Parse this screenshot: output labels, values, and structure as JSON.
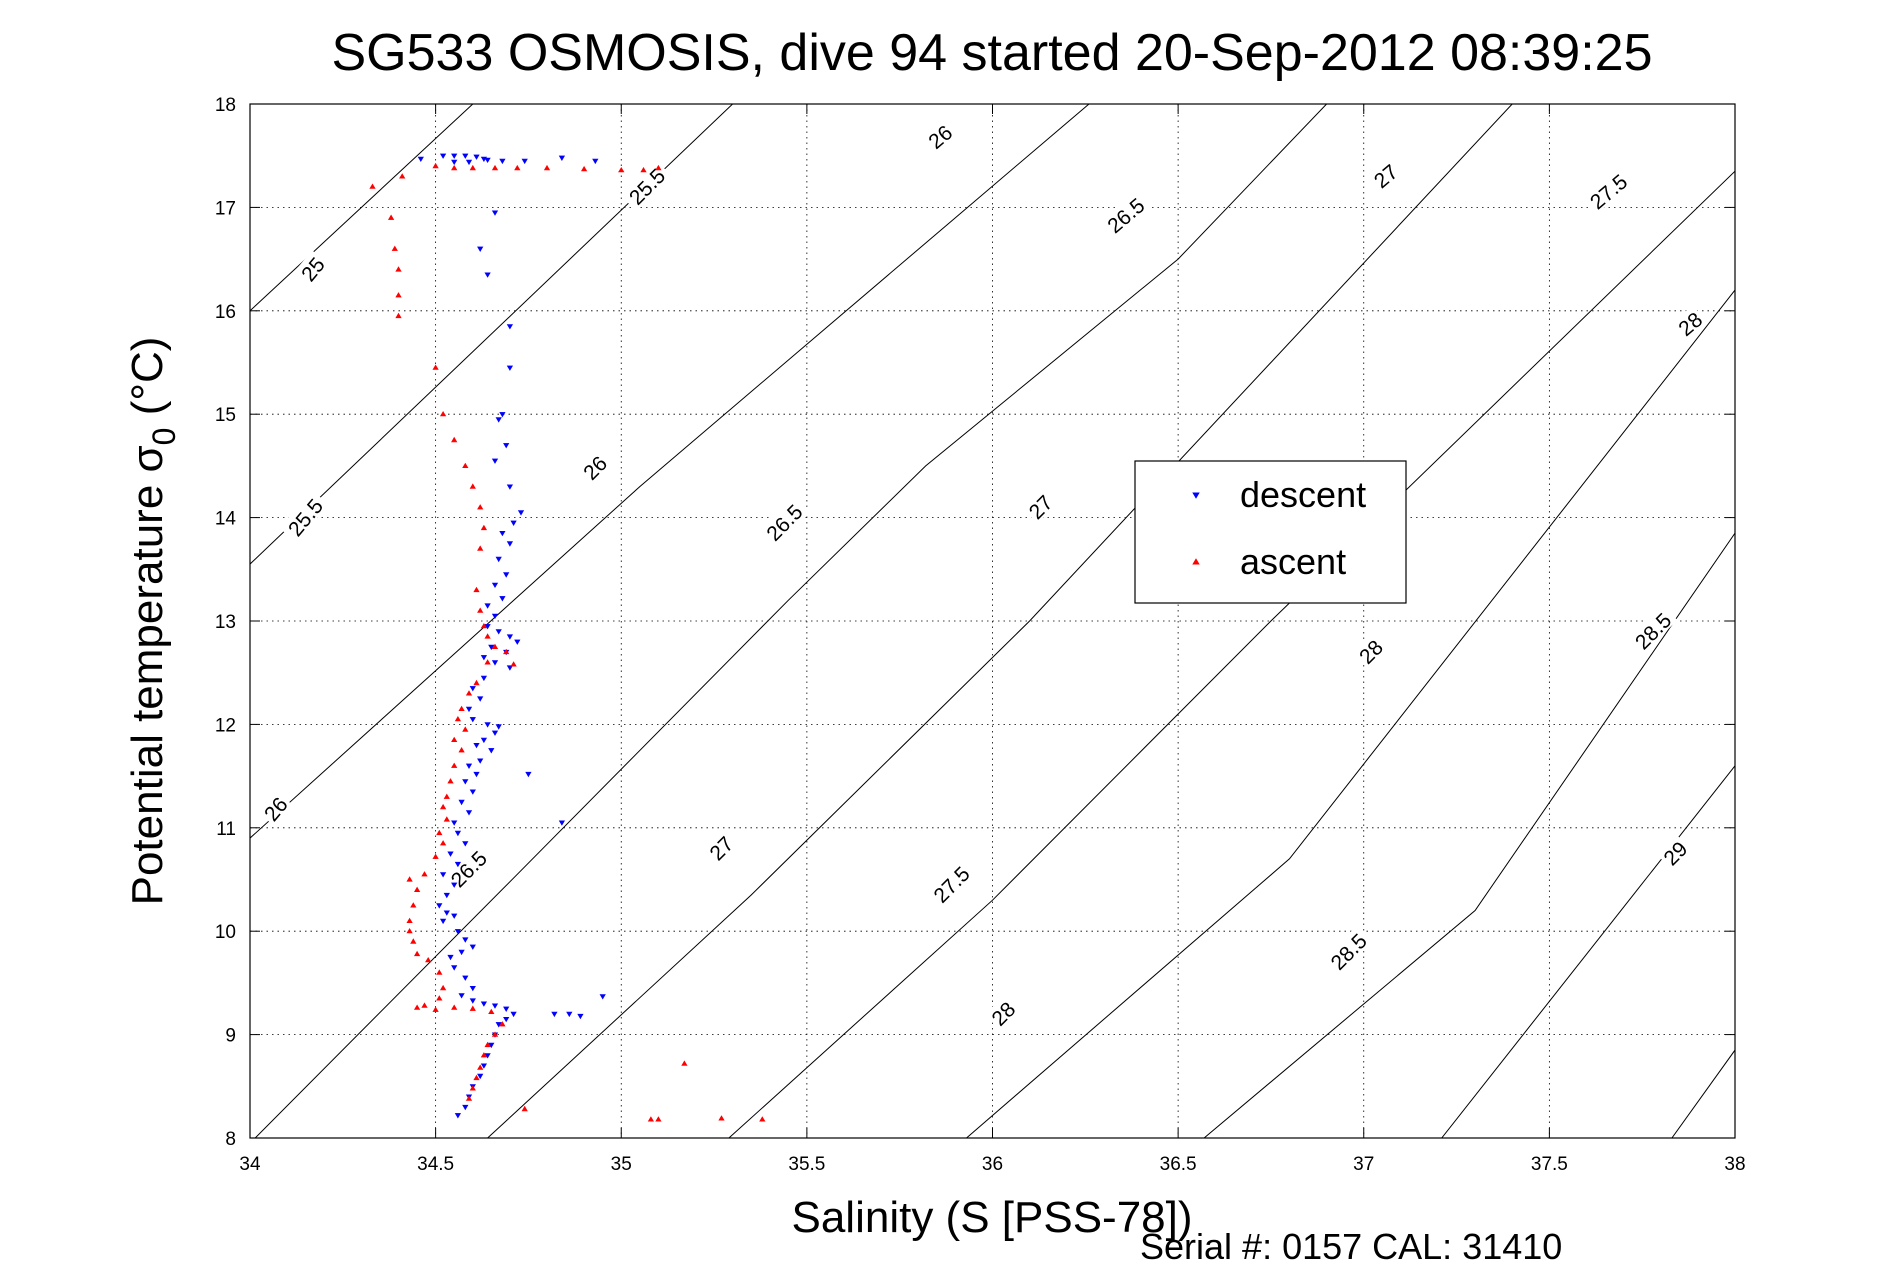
{
  "chart_data": {
    "type": "scatter",
    "title": "SG533 OSMOSIS, dive 94 started 20-Sep-2012 08:39:25",
    "xlabel": "Salinity (S [PSS-78])",
    "ylabel_main": "Potential temperature σ",
    "ylabel_sub": "0",
    "ylabel_unit": "(°C)",
    "footer": "Serial #: 0157  CAL: 31410",
    "xlim": [
      34,
      38
    ],
    "ylim": [
      8,
      18
    ],
    "xticks": [
      "34",
      "34.5",
      "35",
      "35.5",
      "36",
      "36.5",
      "37",
      "37.5",
      "38"
    ],
    "yticks": [
      "8",
      "9",
      "10",
      "11",
      "12",
      "13",
      "14",
      "15",
      "16",
      "17",
      "18"
    ],
    "grid": "dotted",
    "legend_position": "center-right",
    "contours": [
      {
        "label": "25",
        "points": [
          [
            34.0,
            16.0
          ],
          [
            34.6,
            18.0
          ]
        ]
      },
      {
        "label": "25.5",
        "points": [
          [
            34.0,
            13.55
          ],
          [
            35.3,
            18.0
          ]
        ]
      },
      {
        "label": "26",
        "points": [
          [
            34.0,
            10.9
          ],
          [
            35.05,
            14.3
          ],
          [
            35.9,
            16.9
          ],
          [
            36.26,
            18.0
          ]
        ]
      },
      {
        "label": "26.5",
        "points": [
          [
            34.0,
            7.95
          ],
          [
            34.72,
            10.55
          ],
          [
            35.45,
            13.2
          ],
          [
            35.82,
            14.5
          ],
          [
            36.5,
            16.5
          ],
          [
            36.9,
            18.0
          ]
        ]
      },
      {
        "label": "27",
        "points": [
          [
            34.64,
            8.0
          ],
          [
            35.35,
            10.35
          ],
          [
            36.1,
            13.0
          ],
          [
            37.4,
            18.0
          ]
        ]
      },
      {
        "label": "27.5",
        "points": [
          [
            35.29,
            8.0
          ],
          [
            36.0,
            10.3
          ],
          [
            36.75,
            13.0
          ],
          [
            38.0,
            17.35
          ]
        ]
      },
      {
        "label": "28",
        "points": [
          [
            35.93,
            8.0
          ],
          [
            36.8,
            10.7
          ],
          [
            38.0,
            16.2
          ]
        ]
      },
      {
        "label": "28.5",
        "points": [
          [
            36.57,
            8.0
          ],
          [
            37.3,
            10.2
          ],
          [
            38.0,
            13.85
          ]
        ]
      },
      {
        "label": "29",
        "points": [
          [
            37.21,
            8.0
          ],
          [
            38.0,
            11.6
          ]
        ]
      },
      {
        "label": "",
        "points": [
          [
            37.83,
            8.0
          ],
          [
            38.0,
            8.85
          ]
        ]
      }
    ],
    "contour_labels": [
      {
        "text": "25",
        "x": 34.17,
        "y": 16.4,
        "angle": -50
      },
      {
        "text": "25.5",
        "x": 35.07,
        "y": 17.2,
        "angle": -45
      },
      {
        "text": "26",
        "x": 35.86,
        "y": 17.68,
        "angle": -40
      },
      {
        "text": "26.5",
        "x": 36.36,
        "y": 16.92,
        "angle": -40
      },
      {
        "text": "27",
        "x": 37.06,
        "y": 17.3,
        "angle": -40
      },
      {
        "text": "27.5",
        "x": 37.66,
        "y": 17.15,
        "angle": -40
      },
      {
        "text": "28",
        "x": 37.88,
        "y": 15.87,
        "angle": -40
      },
      {
        "text": "25.5",
        "x": 34.15,
        "y": 14.0,
        "angle": -50
      },
      {
        "text": "26",
        "x": 34.93,
        "y": 14.48,
        "angle": -45
      },
      {
        "text": "26.5",
        "x": 35.44,
        "y": 13.95,
        "angle": -45
      },
      {
        "text": "27",
        "x": 36.13,
        "y": 14.1,
        "angle": -45
      },
      {
        "text": "26",
        "x": 34.07,
        "y": 11.18,
        "angle": -50
      },
      {
        "text": "26.5",
        "x": 34.59,
        "y": 10.6,
        "angle": -45
      },
      {
        "text": "27",
        "x": 35.27,
        "y": 10.8,
        "angle": -45
      },
      {
        "text": "27.5",
        "x": 35.89,
        "y": 10.45,
        "angle": -45
      },
      {
        "text": "28",
        "x": 36.03,
        "y": 9.2,
        "angle": -45
      },
      {
        "text": "28",
        "x": 37.02,
        "y": 12.7,
        "angle": -45
      },
      {
        "text": "28.5",
        "x": 37.78,
        "y": 12.9,
        "angle": -45
      },
      {
        "text": "28.5",
        "x": 36.96,
        "y": 9.8,
        "angle": -45
      },
      {
        "text": "29",
        "x": 37.84,
        "y": 10.75,
        "angle": -45
      }
    ],
    "series": [
      {
        "name": "descent",
        "color": "#0000ff",
        "marker": "triangle-down",
        "points": [
          [
            34.46,
            17.47
          ],
          [
            34.52,
            17.5
          ],
          [
            34.55,
            17.5
          ],
          [
            34.58,
            17.5
          ],
          [
            34.61,
            17.49
          ],
          [
            34.64,
            17.46
          ],
          [
            34.68,
            17.45
          ],
          [
            34.74,
            17.45
          ],
          [
            34.84,
            17.48
          ],
          [
            34.93,
            17.45
          ],
          [
            34.55,
            17.44
          ],
          [
            34.59,
            17.44
          ],
          [
            34.63,
            17.47
          ],
          [
            34.66,
            16.95
          ],
          [
            34.62,
            16.6
          ],
          [
            34.64,
            16.35
          ],
          [
            34.7,
            15.85
          ],
          [
            34.7,
            15.45
          ],
          [
            34.68,
            15.0
          ],
          [
            34.67,
            14.95
          ],
          [
            34.69,
            14.7
          ],
          [
            34.66,
            14.55
          ],
          [
            34.7,
            14.3
          ],
          [
            34.73,
            14.05
          ],
          [
            34.71,
            13.95
          ],
          [
            34.68,
            13.85
          ],
          [
            34.7,
            13.75
          ],
          [
            34.67,
            13.6
          ],
          [
            34.69,
            13.45
          ],
          [
            34.66,
            13.35
          ],
          [
            34.68,
            13.22
          ],
          [
            34.64,
            13.15
          ],
          [
            34.66,
            13.05
          ],
          [
            34.64,
            12.95
          ],
          [
            34.67,
            12.9
          ],
          [
            34.7,
            12.85
          ],
          [
            34.72,
            12.8
          ],
          [
            34.65,
            12.75
          ],
          [
            34.69,
            12.7
          ],
          [
            34.63,
            12.65
          ],
          [
            34.66,
            12.6
          ],
          [
            34.7,
            12.55
          ],
          [
            34.63,
            12.45
          ],
          [
            34.6,
            12.35
          ],
          [
            34.62,
            12.25
          ],
          [
            34.59,
            12.15
          ],
          [
            34.6,
            12.05
          ],
          [
            34.64,
            12.0
          ],
          [
            34.67,
            11.98
          ],
          [
            34.66,
            11.92
          ],
          [
            34.63,
            11.85
          ],
          [
            34.61,
            11.8
          ],
          [
            34.65,
            11.75
          ],
          [
            34.62,
            11.65
          ],
          [
            34.59,
            11.6
          ],
          [
            34.61,
            11.52
          ],
          [
            34.75,
            11.52
          ],
          [
            34.58,
            11.45
          ],
          [
            34.6,
            11.35
          ],
          [
            34.57,
            11.25
          ],
          [
            34.59,
            11.15
          ],
          [
            34.55,
            11.05
          ],
          [
            34.84,
            11.05
          ],
          [
            34.56,
            10.95
          ],
          [
            34.58,
            10.85
          ],
          [
            34.54,
            10.75
          ],
          [
            34.56,
            10.65
          ],
          [
            34.52,
            10.55
          ],
          [
            34.55,
            10.45
          ],
          [
            34.53,
            10.35
          ],
          [
            34.51,
            10.25
          ],
          [
            34.53,
            10.18
          ],
          [
            34.55,
            10.15
          ],
          [
            34.52,
            10.1
          ],
          [
            34.56,
            10.0
          ],
          [
            34.58,
            9.92
          ],
          [
            34.6,
            9.85
          ],
          [
            34.57,
            9.8
          ],
          [
            34.54,
            9.75
          ],
          [
            34.55,
            9.65
          ],
          [
            34.58,
            9.55
          ],
          [
            34.6,
            9.45
          ],
          [
            34.57,
            9.38
          ],
          [
            34.6,
            9.33
          ],
          [
            34.63,
            9.3
          ],
          [
            34.66,
            9.28
          ],
          [
            34.69,
            9.25
          ],
          [
            34.71,
            9.2
          ],
          [
            34.69,
            9.15
          ],
          [
            34.67,
            9.1
          ],
          [
            34.66,
            9.0
          ],
          [
            34.65,
            8.9
          ],
          [
            34.64,
            8.8
          ],
          [
            34.63,
            8.7
          ],
          [
            34.62,
            8.6
          ],
          [
            34.6,
            8.5
          ],
          [
            34.59,
            8.4
          ],
          [
            34.58,
            8.3
          ],
          [
            34.56,
            8.22
          ],
          [
            34.82,
            9.2
          ],
          [
            34.86,
            9.2
          ],
          [
            34.89,
            9.18
          ],
          [
            34.95,
            9.37
          ]
        ]
      },
      {
        "name": "ascent",
        "color": "#ff0000",
        "marker": "triangle-up",
        "points": [
          [
            34.33,
            17.2
          ],
          [
            34.41,
            17.3
          ],
          [
            34.5,
            17.4
          ],
          [
            34.55,
            17.38
          ],
          [
            34.6,
            17.38
          ],
          [
            34.66,
            17.38
          ],
          [
            34.72,
            17.38
          ],
          [
            34.8,
            17.38
          ],
          [
            34.9,
            17.37
          ],
          [
            35.0,
            17.36
          ],
          [
            35.06,
            17.36
          ],
          [
            35.1,
            17.38
          ],
          [
            34.38,
            16.9
          ],
          [
            34.39,
            16.6
          ],
          [
            34.4,
            16.4
          ],
          [
            34.4,
            16.15
          ],
          [
            34.4,
            15.95
          ],
          [
            34.5,
            15.45
          ],
          [
            34.52,
            15.0
          ],
          [
            34.55,
            14.75
          ],
          [
            34.58,
            14.5
          ],
          [
            34.6,
            14.3
          ],
          [
            34.62,
            14.1
          ],
          [
            34.63,
            13.9
          ],
          [
            34.62,
            13.7
          ],
          [
            34.61,
            13.3
          ],
          [
            34.62,
            13.1
          ],
          [
            34.63,
            12.95
          ],
          [
            34.64,
            12.85
          ],
          [
            34.66,
            12.75
          ],
          [
            34.69,
            12.7
          ],
          [
            34.71,
            12.58
          ],
          [
            34.64,
            12.6
          ],
          [
            34.61,
            12.4
          ],
          [
            34.59,
            12.3
          ],
          [
            34.57,
            12.15
          ],
          [
            34.56,
            12.05
          ],
          [
            34.58,
            11.95
          ],
          [
            34.55,
            11.85
          ],
          [
            34.57,
            11.75
          ],
          [
            34.55,
            11.6
          ],
          [
            34.54,
            11.45
          ],
          [
            34.53,
            11.3
          ],
          [
            34.52,
            11.2
          ],
          [
            34.53,
            11.08
          ],
          [
            34.51,
            10.95
          ],
          [
            34.52,
            10.85
          ],
          [
            34.5,
            10.72
          ],
          [
            34.47,
            10.55
          ],
          [
            34.43,
            10.5
          ],
          [
            34.45,
            10.4
          ],
          [
            34.44,
            10.25
          ],
          [
            34.43,
            10.1
          ],
          [
            34.43,
            10.0
          ],
          [
            34.44,
            9.9
          ],
          [
            34.45,
            9.78
          ],
          [
            34.48,
            9.72
          ],
          [
            34.51,
            9.6
          ],
          [
            34.52,
            9.45
          ],
          [
            34.51,
            9.35
          ],
          [
            34.47,
            9.28
          ],
          [
            34.45,
            9.26
          ],
          [
            34.5,
            9.24
          ],
          [
            34.55,
            9.26
          ],
          [
            34.6,
            9.25
          ],
          [
            34.65,
            9.22
          ],
          [
            34.68,
            9.1
          ],
          [
            34.66,
            9.0
          ],
          [
            34.64,
            8.9
          ],
          [
            34.63,
            8.8
          ],
          [
            34.62,
            8.68
          ],
          [
            34.61,
            8.58
          ],
          [
            34.6,
            8.48
          ],
          [
            34.59,
            8.38
          ],
          [
            34.74,
            8.28
          ],
          [
            35.08,
            8.18
          ],
          [
            35.1,
            8.18
          ],
          [
            35.17,
            8.72
          ],
          [
            35.27,
            8.19
          ],
          [
            35.38,
            8.18
          ]
        ]
      }
    ],
    "legend": [
      "descent",
      "ascent"
    ]
  }
}
